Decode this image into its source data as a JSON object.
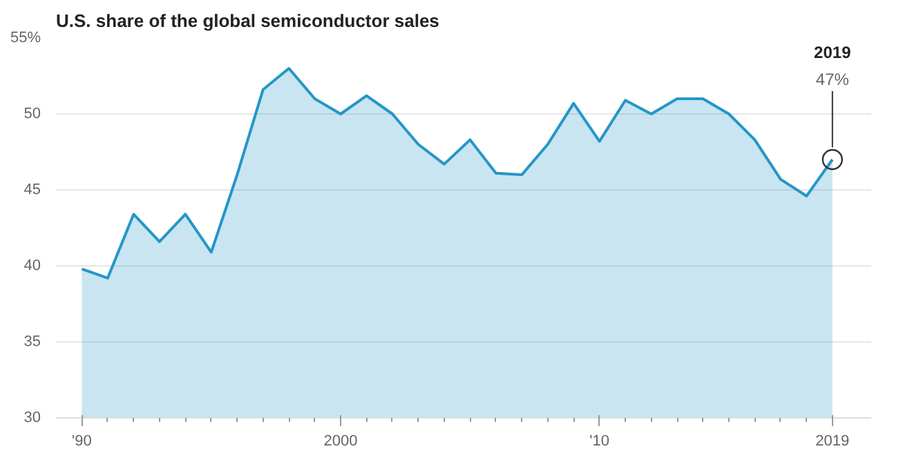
{
  "chart_data": {
    "type": "area",
    "title": "U.S. share of the global semiconductor sales",
    "x": [
      1990,
      1991,
      1992,
      1993,
      1994,
      1995,
      1996,
      1997,
      1998,
      1999,
      2000,
      2001,
      2002,
      2003,
      2004,
      2005,
      2006,
      2007,
      2008,
      2009,
      2010,
      2011,
      2012,
      2013,
      2014,
      2015,
      2016,
      2017,
      2018,
      2019
    ],
    "series": [
      {
        "color": "#2596c8",
        "values": [
          39.8,
          39.2,
          43.4,
          41.6,
          43.4,
          40.9,
          46.0,
          51.6,
          53.0,
          51.0,
          50.0,
          51.2,
          50.0,
          48.0,
          46.7,
          48.3,
          46.1,
          46.0,
          48.0,
          50.7,
          48.2,
          50.9,
          50.0,
          51.0,
          51.0,
          50.0,
          48.3,
          45.7,
          44.6,
          47.0
        ]
      }
    ],
    "xlim": [
      1989,
      2020.5
    ],
    "xticks": [
      {
        "value": 1990,
        "label": "'90"
      },
      2000,
      {
        "value": 2010,
        "label": "'10"
      },
      2019
    ],
    "ylim": [
      30,
      55
    ],
    "yticks": [
      30,
      35,
      40,
      45,
      50,
      {
        "value": 55,
        "label": "55%"
      }
    ],
    "grid": "y",
    "annotations": [
      {
        "text": "2019\n47%",
        "x": 2019,
        "y": 47
      }
    ]
  }
}
